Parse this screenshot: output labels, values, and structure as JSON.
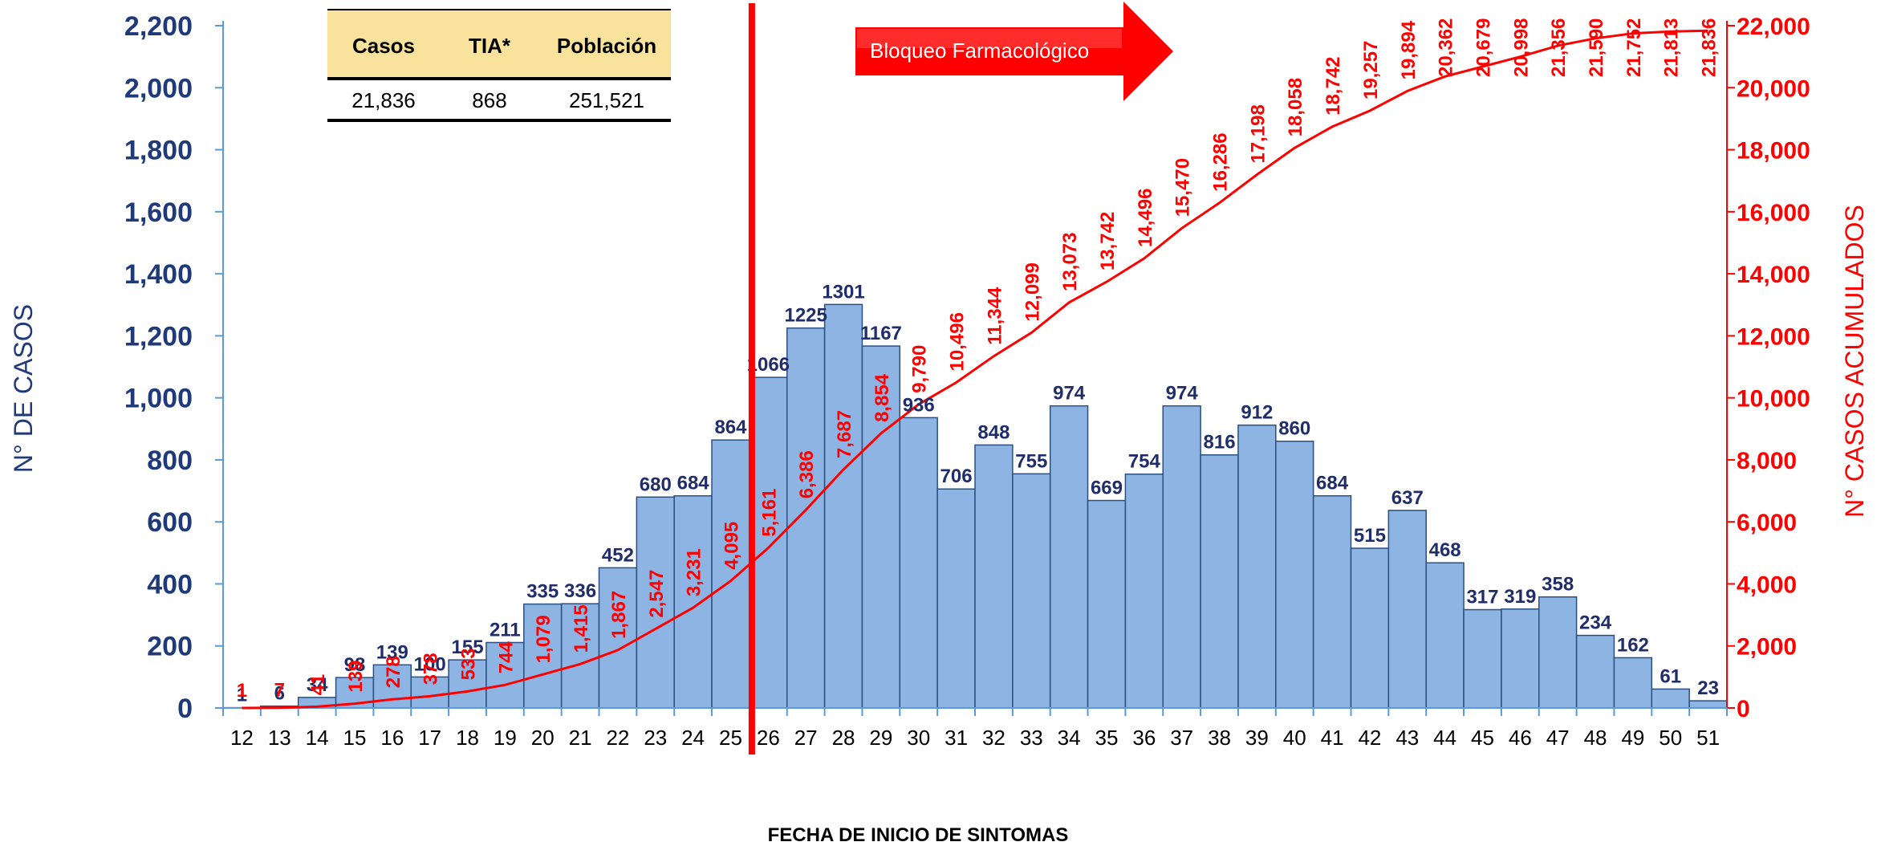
{
  "chart_data": {
    "type": "bar",
    "xlabel": "FECHA DE INICIO DE SINTOMAS",
    "ylabel": "N° DE CASOS",
    "y2label": "N° CASOS ACUMULADOS",
    "ylim": [
      0,
      2200
    ],
    "y2lim": [
      0,
      22000
    ],
    "yticks": [
      "0",
      "200",
      "400",
      "600",
      "800",
      "1,000",
      "1,200",
      "1,400",
      "1,600",
      "1,800",
      "2,000",
      "2,200"
    ],
    "y2ticks": [
      "0",
      "2,000",
      "4,000",
      "6,000",
      "8,000",
      "10,000",
      "12,000",
      "14,000",
      "16,000",
      "18,000",
      "20,000",
      "22,000"
    ],
    "categories": [
      "12",
      "13",
      "14",
      "15",
      "16",
      "17",
      "18",
      "19",
      "20",
      "21",
      "22",
      "23",
      "24",
      "25",
      "26",
      "27",
      "28",
      "29",
      "30",
      "31",
      "32",
      "33",
      "34",
      "35",
      "36",
      "37",
      "38",
      "39",
      "40",
      "41",
      "42",
      "43",
      "44",
      "45",
      "46",
      "47",
      "48",
      "49",
      "50",
      "51"
    ],
    "series": [
      {
        "type": "bar",
        "values": [
          1,
          6,
          34,
          98,
          139,
          100,
          155,
          211,
          335,
          336,
          452,
          680,
          684,
          864,
          1066,
          1225,
          1301,
          1167,
          936,
          706,
          848,
          755,
          974,
          669,
          754,
          974,
          816,
          912,
          860,
          684,
          515,
          637,
          468,
          317,
          319,
          358,
          234,
          162,
          61,
          23
        ],
        "labels": [
          "1",
          "6",
          "34",
          "98",
          "139",
          "100",
          "155",
          "211",
          "335",
          "336",
          "452",
          "680",
          "684",
          "864",
          "1066",
          "1225",
          "1301",
          "1167",
          "936",
          "706",
          "848",
          "755",
          "974",
          "669",
          "754",
          "974",
          "816",
          "912",
          "860",
          "684",
          "515",
          "637",
          "468",
          "317",
          "319",
          "358",
          "234",
          "162",
          "61",
          "23"
        ],
        "color": "#8db4e2"
      },
      {
        "type": "line",
        "axis": "right",
        "values": [
          1,
          7,
          41,
          139,
          278,
          378,
          533,
          744,
          1079,
          1415,
          1867,
          2547,
          3231,
          4095,
          5161,
          6386,
          7687,
          8854,
          9790,
          10496,
          11344,
          12099,
          13073,
          13742,
          14496,
          15470,
          16286,
          17198,
          18058,
          18742,
          19257,
          19894,
          20362,
          20679,
          20998,
          21356,
          21590,
          21752,
          21813,
          21836
        ],
        "labels": [
          "1",
          "7",
          "41",
          "139",
          "278",
          "378",
          "533",
          "744",
          "1,079",
          "1,415",
          "1,867",
          "2,547",
          "3,231",
          "4,095",
          "5,161",
          "6,386",
          "7,687",
          "8,854",
          "9,790",
          "10,496",
          "11,344",
          "12,099",
          "13,073",
          "13,742",
          "14,496",
          "15,470",
          "16,286",
          "17,198",
          "18,058",
          "18,742",
          "19,257",
          "19,894",
          "20,362",
          "20,679",
          "20,998",
          "21,356",
          "21,590",
          "21,752",
          "21,813",
          "21,836"
        ],
        "color": "#ff0000"
      }
    ],
    "marker_after_category": "25",
    "colors": {
      "bar": "#8db4e2",
      "line": "#ff0000",
      "left_axis": "#1f3a7a",
      "right_axis": "#ff0000"
    }
  },
  "summary_table": {
    "headers": [
      "Casos",
      "TIA*",
      "Población"
    ],
    "values": [
      "21,836",
      "868",
      "251,521"
    ],
    "header_bg": "#f8e29c"
  },
  "annotation": {
    "label": "Bloqueo Farmacológico",
    "color": "#ff0000"
  }
}
